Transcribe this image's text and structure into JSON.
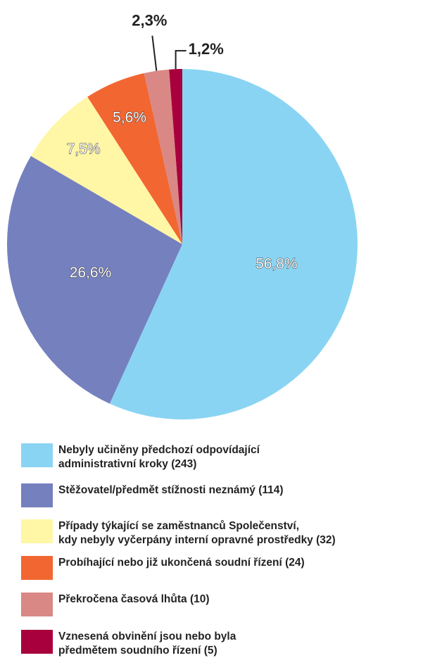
{
  "chart_data": {
    "type": "pie",
    "categories": [
      "Nebyly učiněny předchozí odpovídající\nadministrativní kroky (243)",
      "Stěžovatel/předmět stížnosti neznámý (114)",
      "Případy týkající se zaměstnanců Společenství,\nkdy nebyly vyčerpány interní opravné prostředky (32)",
      "Probíhající nebo již ukončená soudní řízení (24)",
      "Překročena časová lhůta (10)",
      "Vznesená obvinění jsou nebo byla\npředmětem soudního řízení (5)"
    ],
    "values": [
      56.8,
      26.6,
      7.5,
      5.6,
      2.3,
      1.2
    ],
    "value_labels": [
      "56,8%",
      "26,6%",
      "7,5%",
      "5,6%",
      "2,3%",
      "1,2%"
    ],
    "colors": [
      "#8ad4f3",
      "#7580bf",
      "#fff6a6",
      "#f26631",
      "#d98886",
      "#a8003c"
    ]
  }
}
